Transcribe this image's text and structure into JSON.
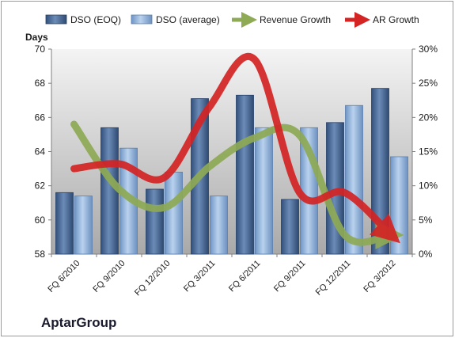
{
  "company": "AptarGroup",
  "chart_data": {
    "type": "bar",
    "categories": [
      "FQ 6/2010",
      "FQ 9/2010",
      "FQ 12/2010",
      "FQ 3/2011",
      "FQ 6/2011",
      "FQ 9/2011",
      "FQ 12/2011",
      "FQ 3/2012"
    ],
    "ylabel_left": "Days",
    "ylim_left": [
      58,
      70
    ],
    "yticks_left": [
      "58",
      "60",
      "62",
      "64",
      "66",
      "68",
      "70"
    ],
    "ylim_right": [
      0,
      30
    ],
    "yticks_right": [
      "0%",
      "5%",
      "10%",
      "15%",
      "20%",
      "25%",
      "30%"
    ],
    "bar_series": [
      {
        "name": "DSO (EOQ)",
        "color": "#4a6894",
        "values": [
          61.6,
          65.4,
          61.8,
          67.1,
          67.3,
          61.2,
          65.7,
          67.7
        ]
      },
      {
        "name": "DSO (average)",
        "color": "#8fb2dc",
        "values": [
          61.4,
          64.2,
          62.8,
          61.4,
          65.4,
          65.4,
          66.7,
          63.7
        ]
      }
    ],
    "line_series": [
      {
        "name": "Revenue Growth",
        "color": "#8eaa55",
        "axis": "right",
        "values": [
          19.0,
          9.5,
          6.8,
          12.8,
          17.0,
          17.4,
          2.8,
          2.8
        ]
      },
      {
        "name": "AR Growth",
        "color": "#d42424",
        "axis": "right",
        "values": [
          12.5,
          13.2,
          11.2,
          21.5,
          28.5,
          9.0,
          9.0,
          3.0
        ]
      }
    ],
    "legend_position": "top",
    "grid": false
  }
}
